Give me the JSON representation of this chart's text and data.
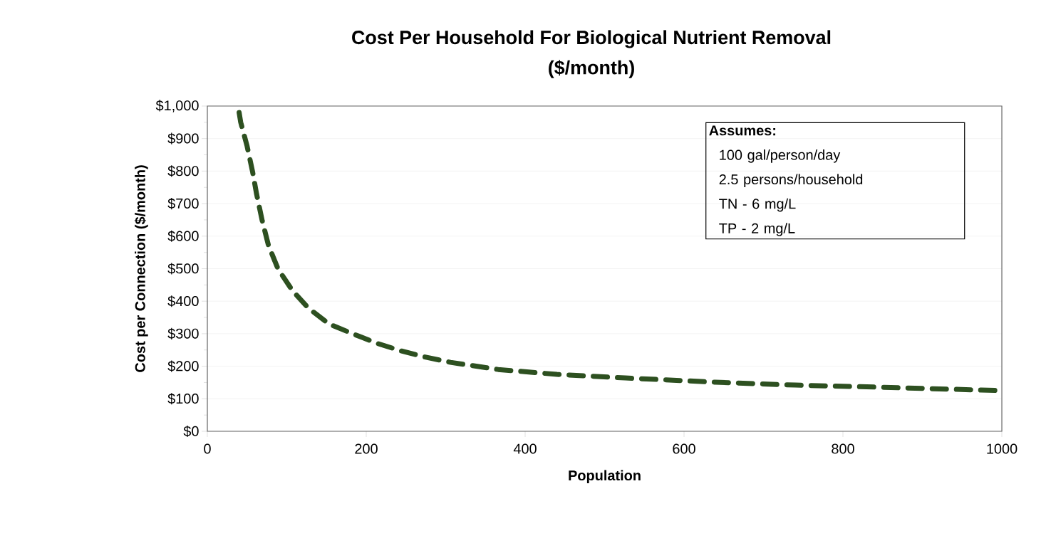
{
  "chart_data": {
    "type": "line",
    "title": "Cost Per Household For Biological Nutrient Removal",
    "subtitle": "($/month)",
    "xlabel": "Population",
    "ylabel": "Cost per Connection ($/month)",
    "x": [
      40,
      42,
      50,
      57,
      62,
      69,
      77,
      89,
      107,
      127,
      153,
      185,
      213,
      244,
      271,
      306,
      366,
      440,
      526,
      639,
      740,
      839,
      1000
    ],
    "series": [
      {
        "color": "#2d5020",
        "values": [
          980,
          950,
          877,
          797,
          729,
          648,
          571,
          499,
          433,
          379,
          330,
          298,
          271,
          247,
          230,
          212,
          190,
          175,
          164,
          151,
          142,
          136,
          125
        ]
      }
    ],
    "xlim": [
      0,
      1000
    ],
    "ylim": [
      0,
      1000
    ],
    "xticks": [
      0,
      200,
      400,
      600,
      800,
      1000
    ],
    "yticks": [
      {
        "value": 0,
        "label": "$0"
      },
      {
        "value": 100,
        "label": "$100"
      },
      {
        "value": 200,
        "label": "$200"
      },
      {
        "value": 300,
        "label": "$300"
      },
      {
        "value": 400,
        "label": "$400"
      },
      {
        "value": 500,
        "label": "$500"
      },
      {
        "value": 600,
        "label": "$600"
      },
      {
        "value": 700,
        "label": "$700"
      },
      {
        "value": 800,
        "label": "$800"
      },
      {
        "value": 900,
        "label": "$900"
      },
      {
        "value": 1000,
        "label": "$1,000"
      }
    ],
    "grid": "y",
    "marker": "none",
    "line_style": "dashed",
    "annotations": [
      "Assumes:",
      "100 gal/person/day",
      "2.5 persons/household",
      "TN - 6 mg/L",
      "TP - 2 mg/L"
    ]
  }
}
